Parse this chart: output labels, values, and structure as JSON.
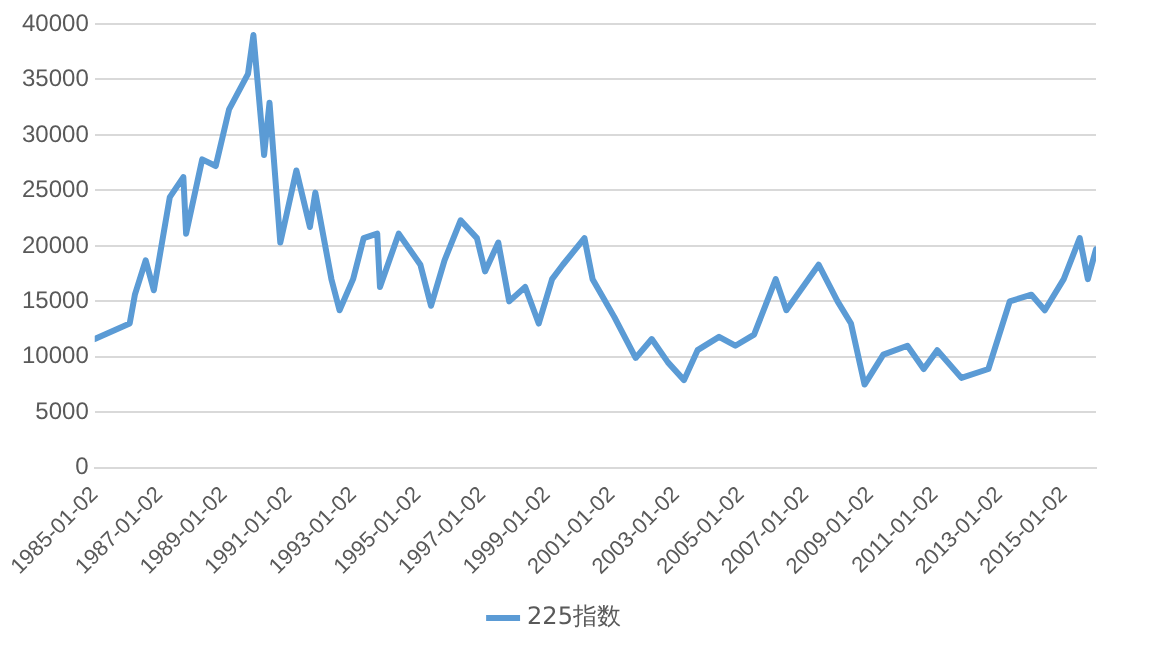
{
  "chart_data": {
    "type": "line",
    "x": [
      "1985-01-02",
      "1986-02",
      "1986-04",
      "1986-08",
      "1986-11",
      "1987-05",
      "1987-10",
      "1987-11",
      "1988-05",
      "1988-10",
      "1989-03",
      "1989-10",
      "1989-12",
      "1990-04",
      "1990-06",
      "1990-10",
      "1991-04",
      "1991-09",
      "1991-11",
      "1992-05",
      "1992-08",
      "1993-01",
      "1993-05",
      "1993-10",
      "1993-11",
      "1994-06",
      "1995-02",
      "1995-06",
      "1995-11",
      "1996-05",
      "1996-11",
      "1997-02",
      "1997-07",
      "1997-11",
      "1998-05",
      "1998-10",
      "1999-03",
      "1999-07",
      "2000-03",
      "2000-06",
      "2001-02",
      "2001-10",
      "2002-04",
      "2002-10",
      "2003-04",
      "2003-09",
      "2004-05",
      "2004-11",
      "2005-06",
      "2006-02",
      "2006-06",
      "2007-06",
      "2008-01",
      "2008-06",
      "2008-11",
      "2009-06",
      "2010-03",
      "2010-09",
      "2011-02",
      "2011-11",
      "2012-09",
      "2013-05",
      "2014-01",
      "2014-06",
      "2015-01",
      "2015-07",
      "2015-10",
      "2016-01"
    ],
    "series": [
      {
        "name": "225指数",
        "color": "#5b9bd5",
        "values": [
          11600,
          13000,
          15600,
          18700,
          16000,
          24400,
          26200,
          21100,
          27800,
          27200,
          32300,
          35500,
          39000,
          28200,
          32900,
          20300,
          26800,
          21700,
          24800,
          17000,
          14200,
          17000,
          20700,
          21100,
          16300,
          21100,
          18300,
          14600,
          18700,
          22300,
          20700,
          17700,
          20300,
          15000,
          16300,
          13000,
          17000,
          18300,
          20700,
          17000,
          13600,
          9900,
          11600,
          9500,
          7900,
          10600,
          11800,
          11000,
          12000,
          17000,
          14200,
          18300,
          15000,
          13000,
          7500,
          10200,
          11000,
          8900,
          10600,
          8100,
          8900,
          15000,
          15600,
          14200,
          17000,
          20700,
          17000,
          19700
        ]
      }
    ],
    "xlim": [
      "1985-01-02",
      "2016-01"
    ],
    "xticks": [
      "1985-01-02",
      "1987-01-02",
      "1989-01-02",
      "1991-01-02",
      "1993-01-02",
      "1995-01-02",
      "1997-01-02",
      "1999-01-02",
      "2001-01-02",
      "2003-01-02",
      "2005-01-02",
      "2007-01-02",
      "2009-01-02",
      "2011-01-02",
      "2013-01-02",
      "2015-01-02"
    ],
    "ylim": [
      0,
      40000
    ],
    "yticks": [
      0,
      5000,
      10000,
      15000,
      20000,
      25000,
      30000,
      35000,
      40000
    ],
    "grid": "y",
    "legend": "bottom",
    "marker": "none",
    "line_style": "solid"
  }
}
